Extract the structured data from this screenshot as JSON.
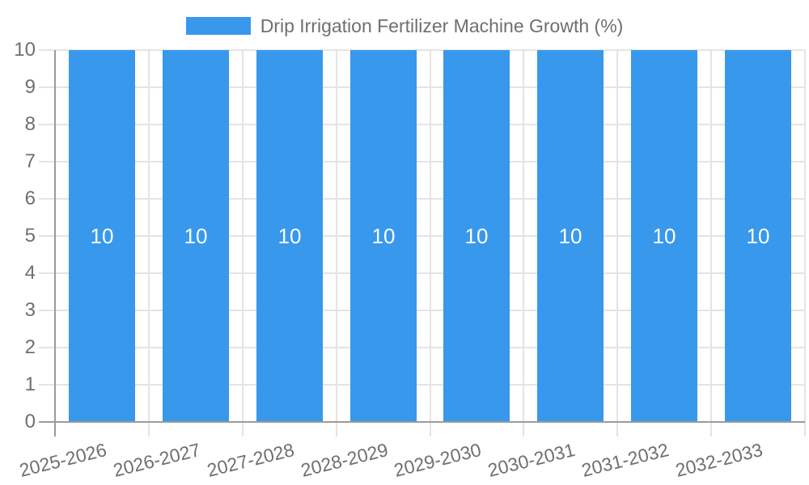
{
  "legend": {
    "label": "Drip Irrigation Fertilizer Machine Growth (%)"
  },
  "colors": {
    "bar": "#3898ec",
    "grid": "#e4e4e4",
    "axis": "#9b9b9b",
    "tick_text": "#6f6f6f",
    "value_label_text": "#ffffff",
    "background": "#ffffff"
  },
  "chart_data": {
    "type": "bar",
    "title": "Drip Irrigation Fertilizer Machine Growth (%)",
    "categories": [
      "2025-2026",
      "2026-2027",
      "2027-2028",
      "2028-2029",
      "2029-2030",
      "2030-2031",
      "2031-2032",
      "2032-2033"
    ],
    "series": [
      {
        "name": "Drip Irrigation Fertilizer Machine Growth (%)",
        "values": [
          10,
          10,
          10,
          10,
          10,
          10,
          10,
          10
        ]
      }
    ],
    "value_labels": [
      "10",
      "10",
      "10",
      "10",
      "10",
      "10",
      "10",
      "10"
    ],
    "xlabel": "",
    "ylabel": "",
    "ylim": [
      0,
      10
    ],
    "ytick_step": 1,
    "yticks": [
      0,
      1,
      2,
      3,
      4,
      5,
      6,
      7,
      8,
      9,
      10
    ],
    "grid": true,
    "legend_position": "top"
  }
}
